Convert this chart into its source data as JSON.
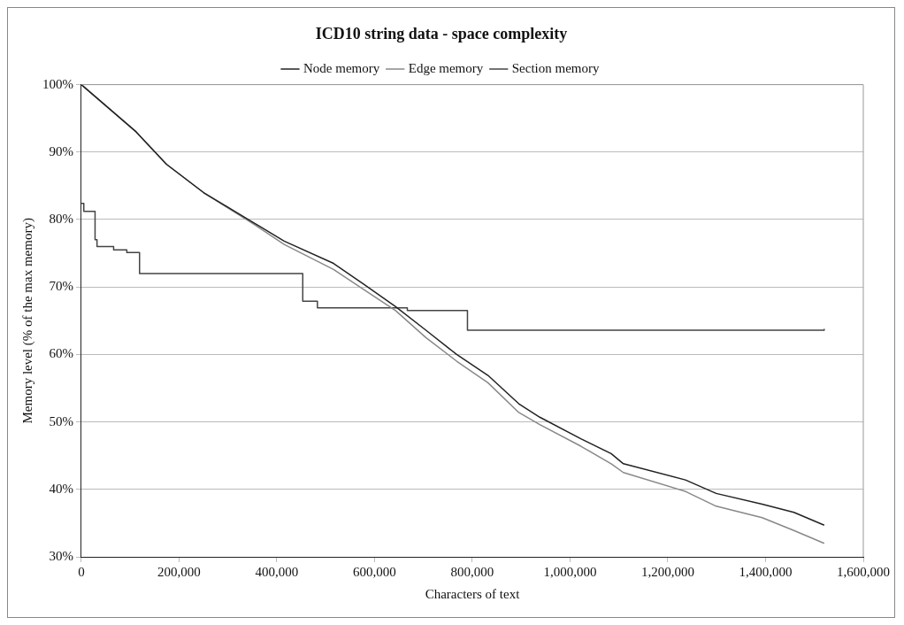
{
  "chart_data": {
    "type": "line",
    "title": "ICD10 string data - space complexity",
    "xlabel": "Characters of text",
    "ylabel": "Memory level (% of the max memory)",
    "xlim": [
      0,
      1600000
    ],
    "xticks": [
      0,
      {
        "value": 200000,
        "label": "200,000"
      },
      {
        "value": 400000,
        "label": "400,000"
      },
      {
        "value": 600000,
        "label": "600,000"
      },
      {
        "value": 800000,
        "label": "800,000"
      },
      {
        "value": 1000000,
        "label": "1,000,000"
      },
      {
        "value": 1200000,
        "label": "1,200,000"
      },
      {
        "value": 1400000,
        "label": "1,400,000"
      },
      {
        "value": 1600000,
        "label": "1,600,000"
      }
    ],
    "ylim": [
      30,
      100
    ],
    "yticks": [
      {
        "value": 30,
        "label": "30%"
      },
      {
        "value": 40,
        "label": "40%"
      },
      {
        "value": 50,
        "label": "50%"
      },
      {
        "value": 60,
        "label": "60%"
      },
      {
        "value": 70,
        "label": "70%"
      },
      {
        "value": 80,
        "label": "80%"
      },
      {
        "value": 90,
        "label": "90%"
      },
      {
        "value": 100,
        "label": "100%"
      }
    ],
    "grid": "y",
    "legend": "top",
    "marker": "none",
    "line_style": "solid",
    "series": [
      {
        "name": "Node memory",
        "type": "line",
        "color": "#222222",
        "x": [
          0,
          112000,
          174000,
          250000,
          351000,
          415000,
          516000,
          578000,
          643000,
          705000,
          768000,
          832000,
          895000,
          938000,
          1022000,
          1084000,
          1109000,
          1236000,
          1299000,
          1393000,
          1458000,
          1520000
        ],
        "values": [
          100,
          93.0,
          88.2,
          84.0,
          79.6,
          76.8,
          73.5,
          70.4,
          67.1,
          63.6,
          60.0,
          56.9,
          52.7,
          50.7,
          47.5,
          45.3,
          43.8,
          41.4,
          39.4,
          37.8,
          36.6,
          34.7
        ]
      },
      {
        "name": "Edge memory",
        "type": "line",
        "color": "#888888",
        "x": [
          0,
          112000,
          174000,
          250000,
          351000,
          415000,
          516000,
          578000,
          643000,
          705000,
          768000,
          832000,
          895000,
          938000,
          1022000,
          1084000,
          1109000,
          1236000,
          1299000,
          1393000,
          1458000,
          1520000
        ],
        "values": [
          100,
          93.0,
          88.2,
          84.0,
          79.4,
          76.3,
          72.6,
          69.6,
          66.5,
          62.5,
          59.0,
          55.8,
          51.4,
          49.6,
          46.4,
          43.8,
          42.5,
          39.7,
          37.5,
          35.8,
          33.9,
          32.0
        ]
      },
      {
        "name": "Section memory",
        "type": "step",
        "color": "#444444",
        "x": [
          0,
          5000,
          28000,
          32000,
          66000,
          93000,
          119000,
          453000,
          483000,
          667000,
          790000,
          1520000
        ],
        "values": [
          82.4,
          81.2,
          77.0,
          76.0,
          75.5,
          75.1,
          72.0,
          67.9,
          66.9,
          66.5,
          63.6,
          63.8
        ]
      }
    ]
  }
}
